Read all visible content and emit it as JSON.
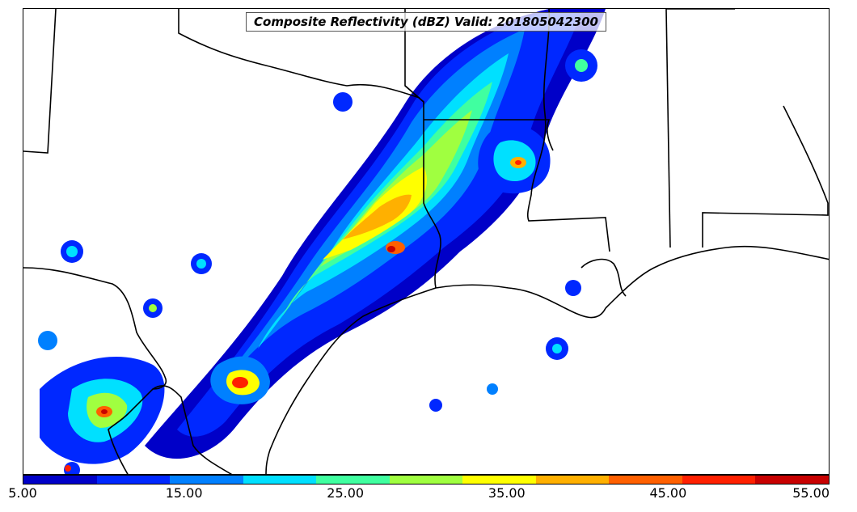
{
  "title": "Composite Reflectivity (dBZ) Valid: 201805042300",
  "colorbar": {
    "ticks": [
      "5.00",
      "15.00",
      "25.00",
      "35.00",
      "45.00",
      "55.00"
    ],
    "colors": [
      "#0000c8",
      "#0028ff",
      "#0080ff",
      "#00e0ff",
      "#40ffa0",
      "#a0ff40",
      "#ffff00",
      "#ffb000",
      "#ff6000",
      "#ff2000",
      "#c80000"
    ]
  }
}
